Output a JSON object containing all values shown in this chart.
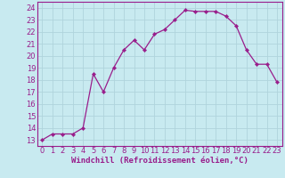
{
  "x": [
    0,
    1,
    2,
    3,
    4,
    5,
    6,
    7,
    8,
    9,
    10,
    11,
    12,
    13,
    14,
    15,
    16,
    17,
    18,
    19,
    20,
    21,
    22,
    23
  ],
  "y": [
    13.0,
    13.5,
    13.5,
    13.5,
    14.0,
    18.5,
    17.0,
    19.0,
    20.5,
    21.3,
    20.5,
    21.8,
    22.2,
    23.0,
    23.8,
    23.7,
    23.7,
    23.7,
    23.3,
    22.5,
    20.5,
    19.3,
    19.3,
    17.8
  ],
  "line_color": "#991d8b",
  "marker": "D",
  "marker_size": 2.2,
  "bg_color": "#c8eaf0",
  "grid_color": "#b0d4dc",
  "xlabel": "Windchill (Refroidissement éolien,°C)",
  "xlim": [
    -0.5,
    23.5
  ],
  "ylim": [
    12.5,
    24.5
  ],
  "yticks": [
    13,
    14,
    15,
    16,
    17,
    18,
    19,
    20,
    21,
    22,
    23,
    24
  ],
  "xticks": [
    0,
    1,
    2,
    3,
    4,
    5,
    6,
    7,
    8,
    9,
    10,
    11,
    12,
    13,
    14,
    15,
    16,
    17,
    18,
    19,
    20,
    21,
    22,
    23
  ],
  "xlabel_fontsize": 6.5,
  "tick_fontsize": 6.0
}
